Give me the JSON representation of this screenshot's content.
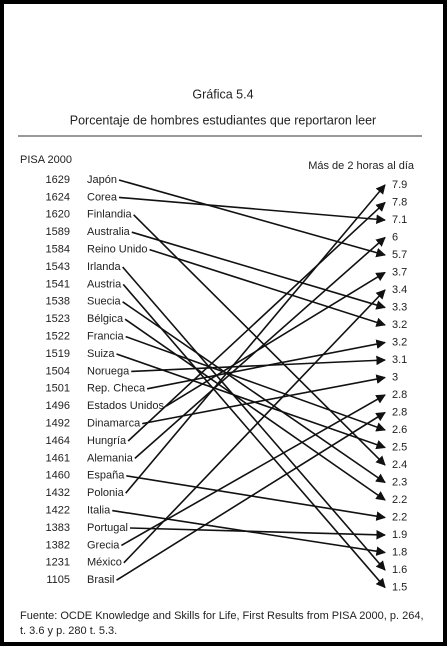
{
  "chart_data": {
    "type": "slope",
    "title": "Gráfica 5.4",
    "subtitle": "Porcentaje de hombres estudiantes que reportaron leer",
    "left_label": "PISA 2000",
    "right_label": "Más de 2 horas al día",
    "countries": [
      {
        "score": 1629,
        "name": "Japón",
        "value": 5.7
      },
      {
        "score": 1624,
        "name": "Corea",
        "value": 7.1
      },
      {
        "score": 1620,
        "name": "Finlandia",
        "value": 2.4
      },
      {
        "score": 1589,
        "name": "Australia",
        "value": 3.3
      },
      {
        "score": 1584,
        "name": "Reino Unido",
        "value": 3.2
      },
      {
        "score": 1543,
        "name": "Irlanda",
        "value": 1.6
      },
      {
        "score": 1541,
        "name": "Austria",
        "value": 1.5
      },
      {
        "score": 1538,
        "name": "Suecia",
        "value": 2.3
      },
      {
        "score": 1523,
        "name": "Bélgica",
        "value": 2.2
      },
      {
        "score": 1522,
        "name": "Francia",
        "value": 2.6
      },
      {
        "score": 1519,
        "name": "Suiza",
        "value": 2.5
      },
      {
        "score": 1504,
        "name": "Noruega",
        "value": 3.1
      },
      {
        "score": 1501,
        "name": "Rep. Checa",
        "value": 3.2
      },
      {
        "score": 1496,
        "name": "Estados Unidos",
        "value": 3.7
      },
      {
        "score": 1492,
        "name": "Dinamarca",
        "value": 3
      },
      {
        "score": 1464,
        "name": "Hungría",
        "value": 7.8
      },
      {
        "score": 1461,
        "name": "Alemania",
        "value": 6
      },
      {
        "score": 1460,
        "name": "España",
        "value": 2.2
      },
      {
        "score": 1432,
        "name": "Polonia",
        "value": 7.9
      },
      {
        "score": 1422,
        "name": "Italia",
        "value": 1.8
      },
      {
        "score": 1383,
        "name": "Portugal",
        "value": 1.9
      },
      {
        "score": 1382,
        "name": "Grecia",
        "value": 2.8
      },
      {
        "score": 1231,
        "name": "México",
        "value": 3.4
      },
      {
        "score": 1105,
        "name": "Brasil",
        "value": 2.8
      }
    ],
    "right_values": [
      7.9,
      7.8,
      7.1,
      6,
      5.7,
      3.7,
      3.4,
      3.3,
      3.2,
      3.2,
      3.1,
      3,
      2.8,
      2.8,
      2.6,
      2.5,
      2.4,
      2.3,
      2.2,
      2.2,
      1.9,
      1.8,
      1.6,
      1.5
    ],
    "source": [
      "Fuente: OCDE Knowledge and Skills for Life, First Results from PISA 2000, p. 264,",
      "t. 3.6 y p. 280 t. 5.3."
    ]
  }
}
